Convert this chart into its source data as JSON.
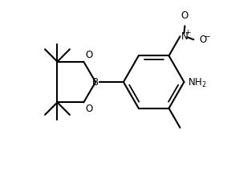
{
  "bg_color": "#ffffff",
  "line_color": "#000000",
  "lw": 1.5,
  "fig_width": 2.88,
  "fig_height": 2.14,
  "dpi": 100,
  "xlim": [
    0,
    288
  ],
  "ylim": [
    0,
    214
  ]
}
